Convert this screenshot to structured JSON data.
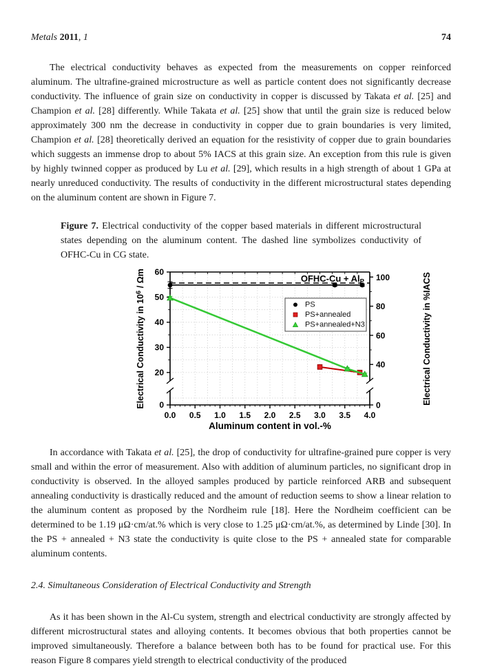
{
  "header": {
    "journal_segments": [
      {
        "t": "Metals ",
        "i": 1
      },
      {
        "t": "2011",
        "b": 1
      },
      {
        "t": ", "
      },
      {
        "t": "1",
        "i": 1
      }
    ],
    "page_number": "74"
  },
  "paragraphs": {
    "p1_segments": [
      {
        "t": "The electrical conductivity behaves as expected from the measurements on copper reinforced aluminum. The ultrafine-grained microstructure as well as particle content does not significantly decrease conductivity. The influence of grain size on conductivity in copper is discussed by Takata "
      },
      {
        "t": "et al.",
        "i": 1
      },
      {
        "t": " [25] and Champion "
      },
      {
        "t": "et al.",
        "i": 1
      },
      {
        "t": " [28] differently. While Takata "
      },
      {
        "t": "et al.",
        "i": 1
      },
      {
        "t": " [25] show that until the grain size is reduced below approximately 300 nm the decrease in conductivity in copper due to grain boundaries is very limited, Champion "
      },
      {
        "t": "et al.",
        "i": 1
      },
      {
        "t": " [28] theoretically derived an equation for the resistivity of copper due to grain boundaries which suggests an immense drop to about 5% IACS at this grain size. An exception from this rule is given by highly twinned copper as produced by Lu "
      },
      {
        "t": "et al.",
        "i": 1
      },
      {
        "t": " [29], which results in a high strength of about 1 GPa at nearly unreduced conductivity. The results of conductivity in the different microstructural states depending on the aluminum content are shown in Figure 7."
      }
    ],
    "caption_segments": [
      {
        "t": "Figure 7.",
        "b": 1
      },
      {
        "t": " Electrical conductivity of the copper based materials in different microstructural states depending on the aluminum content. The dashed line symbolizes conductivity of OFHC-Cu in CG state."
      }
    ],
    "p2_segments": [
      {
        "t": "In accordance with Takata "
      },
      {
        "t": "et al.",
        "i": 1
      },
      {
        "t": " [25], the drop of conductivity for ultrafine-grained pure copper is very small and within the error of measurement. Also with addition of aluminum particles, no significant drop in conductivity is observed. In the alloyed samples produced by particle reinforced ARB and subsequent annealing conductivity is drastically reduced and the amount of reduction seems to show a linear relation to the aluminum content as proposed by the Nordheim rule [18]. Here the Nordheim coefficient can be determined to be 1.19 μΩ·cm/at.% which is very close to 1.25 μΩ·cm/at.%, as determined by Linde [30]. In the PS + annealed + N3 state the conductivity is quite close to the PS + annealed state for comparable aluminum contents."
      }
    ],
    "section_heading": "2.4. Simultaneous Consideration of Electrical Conductivity and Strength",
    "p3": "As it has been shown in the Al-Cu system, strength and electrical conductivity are strongly affected by different microstructural states and alloying contents. It becomes obvious that both properties cannot be improved simultaneously. Therefore a balance between both has to be found for practical use. For this reason Figure 8 compares yield strength to electrical conductivity of the produced"
  },
  "chart_data": {
    "type": "line",
    "xlabel": "Aluminum content in vol.-%",
    "ylabel_left_segments": [
      {
        "t": "Electrical Conductivity in 10"
      },
      {
        "t": "6",
        "sup": 1
      },
      {
        "t": " / Ωm"
      }
    ],
    "ylabel_right": "Electrical Conductivity in %IACS",
    "xlim": [
      0.0,
      4.0
    ],
    "ylim_left": [
      0,
      60
    ],
    "y_axis_break": [
      2,
      17.5
    ],
    "x_ticks": [
      0.0,
      0.5,
      1.0,
      1.5,
      2.0,
      2.5,
      3.0,
      3.5,
      4.0
    ],
    "y_ticks_left": [
      0,
      20,
      30,
      40,
      50,
      60
    ],
    "y_minor_ticks_left": [
      25,
      35,
      45,
      55
    ],
    "y_ticks_right_iacs": [
      0,
      40,
      60,
      80,
      100
    ],
    "y_minor_ticks_right_iacs": [
      30,
      50,
      70,
      90
    ],
    "iacs_factor": 0.58,
    "grid": "dotted",
    "dashed_reference": {
      "value": 55.6,
      "meaning": "conductivity of OFHC-Cu in CG state"
    },
    "annotation_segments": [
      {
        "t": "OFHC-Cu + Al"
      },
      {
        "t": "P",
        "sub": 1
      }
    ],
    "legend": {
      "position": "upper-middle-inside"
    },
    "series": [
      {
        "name": "PS",
        "marker": "circle",
        "color": "#000000",
        "line_color": "#000000",
        "x": [
          0.0,
          3.3,
          3.85
        ],
        "y": [
          54.8,
          54.8,
          54.8
        ],
        "yerr": [
          1.3,
          0.5,
          0.5
        ]
      },
      {
        "name": "PS+annealed",
        "marker": "square",
        "color": "#e02020",
        "line_color": "#c00000",
        "x": [
          3.0,
          3.8
        ],
        "y": [
          22.2,
          20.0
        ],
        "yerr": [
          0.9,
          0.4
        ]
      },
      {
        "name": "PS+annealed+N3",
        "marker": "triangle",
        "color": "#3ad23a",
        "line_color": "#35c935",
        "x": [
          0.0,
          3.55,
          3.9
        ],
        "y": [
          49.7,
          21.5,
          19.3
        ],
        "yerr": [
          0.6,
          0.5,
          0.4
        ]
      }
    ]
  }
}
